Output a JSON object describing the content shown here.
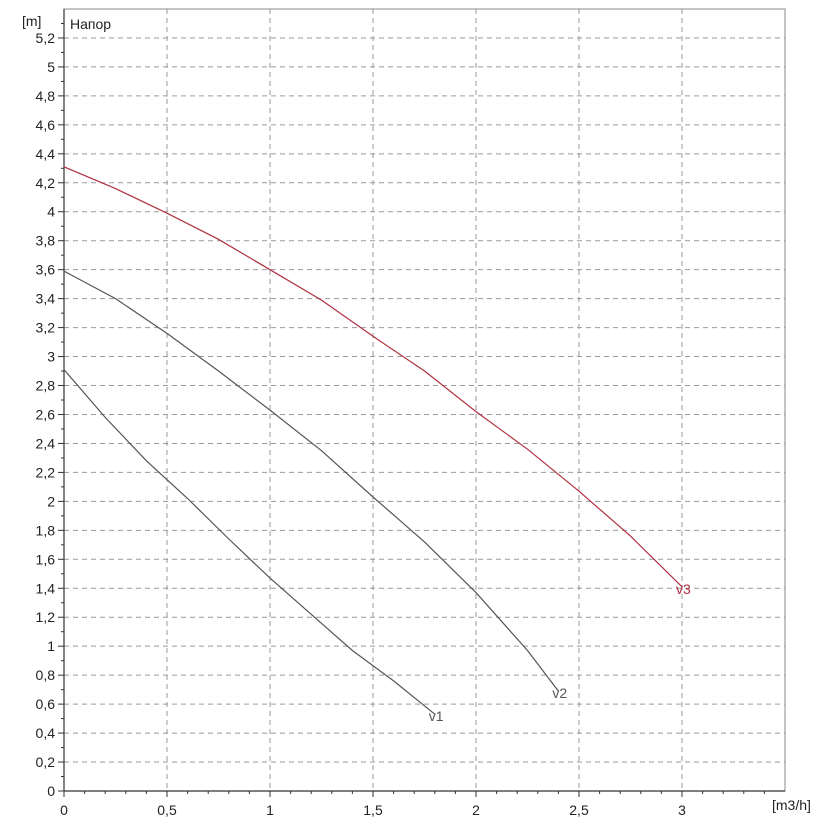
{
  "chart_data": {
    "type": "line",
    "title": "Напор",
    "ylabel": "[m]",
    "xlabel": "[m3/h]",
    "xlim": [
      0,
      3.5
    ],
    "ylim": [
      0,
      5.4
    ],
    "grid": true,
    "x_ticks": [
      {
        "value": 0,
        "label": "0"
      },
      {
        "value": 0.5,
        "label": "0,5"
      },
      {
        "value": 1,
        "label": "1"
      },
      {
        "value": 1.5,
        "label": "1,5"
      },
      {
        "value": 2,
        "label": "2"
      },
      {
        "value": 2.5,
        "label": "2,5"
      },
      {
        "value": 3,
        "label": "3"
      }
    ],
    "y_ticks": [
      {
        "value": 0,
        "label": "0"
      },
      {
        "value": 0.2,
        "label": "0,2"
      },
      {
        "value": 0.4,
        "label": "0,4"
      },
      {
        "value": 0.6,
        "label": "0,6"
      },
      {
        "value": 0.8,
        "label": "0,8"
      },
      {
        "value": 1,
        "label": "1"
      },
      {
        "value": 1.2,
        "label": "1,2"
      },
      {
        "value": 1.4,
        "label": "1,4"
      },
      {
        "value": 1.6,
        "label": "1,6"
      },
      {
        "value": 1.8,
        "label": "1,8"
      },
      {
        "value": 2,
        "label": "2"
      },
      {
        "value": 2.2,
        "label": "2,2"
      },
      {
        "value": 2.4,
        "label": "2,4"
      },
      {
        "value": 2.6,
        "label": "2,6"
      },
      {
        "value": 2.8,
        "label": "2,8"
      },
      {
        "value": 3,
        "label": "3"
      },
      {
        "value": 3.2,
        "label": "3,2"
      },
      {
        "value": 3.4,
        "label": "3,4"
      },
      {
        "value": 3.6,
        "label": "3,6"
      },
      {
        "value": 3.8,
        "label": "3,8"
      },
      {
        "value": 4,
        "label": "4"
      },
      {
        "value": 4.2,
        "label": "4,2"
      },
      {
        "value": 4.4,
        "label": "4,4"
      },
      {
        "value": 4.6,
        "label": "4,6"
      },
      {
        "value": 4.8,
        "label": "4,8"
      },
      {
        "value": 5,
        "label": "5"
      },
      {
        "value": 5.2,
        "label": "5,2"
      }
    ],
    "series": [
      {
        "name": "v1",
        "color": "#555555",
        "x": [
          0,
          0.2,
          0.4,
          0.6,
          0.8,
          1.0,
          1.2,
          1.4,
          1.6,
          1.8
        ],
        "y": [
          2.91,
          2.58,
          2.28,
          2.02,
          1.74,
          1.47,
          1.22,
          0.97,
          0.76,
          0.53
        ]
      },
      {
        "name": "v2",
        "color": "#555555",
        "x": [
          0,
          0.25,
          0.5,
          0.75,
          1.0,
          1.25,
          1.5,
          1.75,
          2.0,
          2.25,
          2.4
        ],
        "y": [
          3.59,
          3.4,
          3.16,
          2.9,
          2.63,
          2.35,
          2.03,
          1.72,
          1.37,
          0.97,
          0.69
        ]
      },
      {
        "name": "v3",
        "color": "#b03040",
        "x": [
          0,
          0.25,
          0.5,
          0.75,
          1.0,
          1.25,
          1.5,
          1.75,
          2.0,
          2.25,
          2.5,
          2.75,
          3.0
        ],
        "y": [
          4.31,
          4.16,
          3.99,
          3.81,
          3.6,
          3.39,
          3.14,
          2.9,
          2.62,
          2.36,
          2.07,
          1.76,
          1.41
        ]
      }
    ]
  }
}
